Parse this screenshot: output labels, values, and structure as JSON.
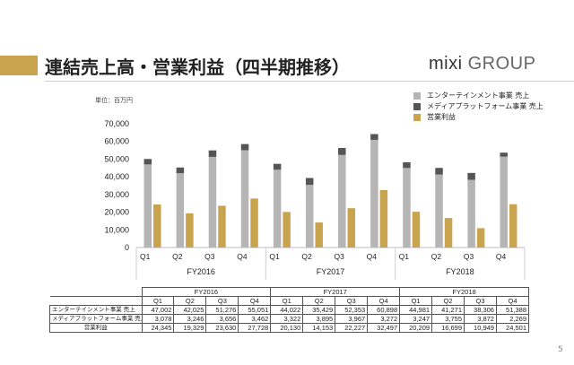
{
  "slide": {
    "title": "連結売上高・営業利益（四半期推移）",
    "logo_main": "mixi",
    "logo_sub": "GROUP",
    "unit_label": "単位：百万円",
    "page_number": "5"
  },
  "colors": {
    "accent": "#C8A44F",
    "entertainment": "#B5B5B5",
    "media_platform": "#555555",
    "operating_profit": "#C8A44F"
  },
  "chart_data": {
    "type": "bar",
    "stacked_series": [
      "エンターテインメント事業 売上",
      "メディアプラットフォーム事業 売上"
    ],
    "x_groups": [
      "FY2016",
      "FY2017",
      "FY2018"
    ],
    "quarters": [
      "Q1",
      "Q2",
      "Q3",
      "Q4"
    ],
    "categories": [
      "Q1",
      "Q2",
      "Q3",
      "Q4",
      "Q1",
      "Q2",
      "Q3",
      "Q4",
      "Q1",
      "Q2",
      "Q3",
      "Q4"
    ],
    "series": [
      {
        "name": "エンターテインメント事業 売上",
        "values": [
          47002,
          42025,
          51276,
          55051,
          44022,
          35429,
          52353,
          60898,
          44981,
          41271,
          38306,
          51388
        ]
      },
      {
        "name": "メディアプラットフォーム事業 売上",
        "values": [
          3078,
          3246,
          3656,
          3462,
          3322,
          3895,
          3967,
          3272,
          3247,
          3755,
          3872,
          2269
        ]
      },
      {
        "name": "営業利益",
        "values": [
          24345,
          19329,
          23630,
          27728,
          20130,
          14153,
          22227,
          32497,
          20209,
          16699,
          10949,
          24501
        ]
      }
    ],
    "yticks": [
      "0",
      "10,000",
      "20,000",
      "30,000",
      "40,000",
      "50,000",
      "60,000",
      "70,000"
    ],
    "ylim": [
      0,
      70000
    ],
    "grid": false,
    "legend_position": "top-right"
  },
  "table": {
    "header_years": [
      "FY2016",
      "FY2017",
      "FY2018"
    ],
    "header_quarters": [
      "Q1",
      "Q2",
      "Q3",
      "Q4",
      "Q1",
      "Q2",
      "Q3",
      "Q4",
      "Q1",
      "Q2",
      "Q3",
      "Q4"
    ],
    "rows": [
      {
        "label": "エンターテインメント事業 売上",
        "values": [
          "47,002",
          "42,025",
          "51,276",
          "55,051",
          "44,022",
          "35,429",
          "52,353",
          "60,898",
          "44,981",
          "41,271",
          "38,306",
          "51,388"
        ]
      },
      {
        "label": "メディアプラットフォーム事業 売上",
        "values": [
          "3,078",
          "3,246",
          "3,656",
          "3,462",
          "3,322",
          "3,895",
          "3,967",
          "3,272",
          "3,247",
          "3,755",
          "3,872",
          "2,269"
        ]
      },
      {
        "label": "営業利益",
        "values": [
          "24,345",
          "19,329",
          "23,630",
          "27,728",
          "20,130",
          "14,153",
          "22,227",
          "32,497",
          "20,209",
          "16,699",
          "10,949",
          "24,501"
        ]
      }
    ]
  }
}
